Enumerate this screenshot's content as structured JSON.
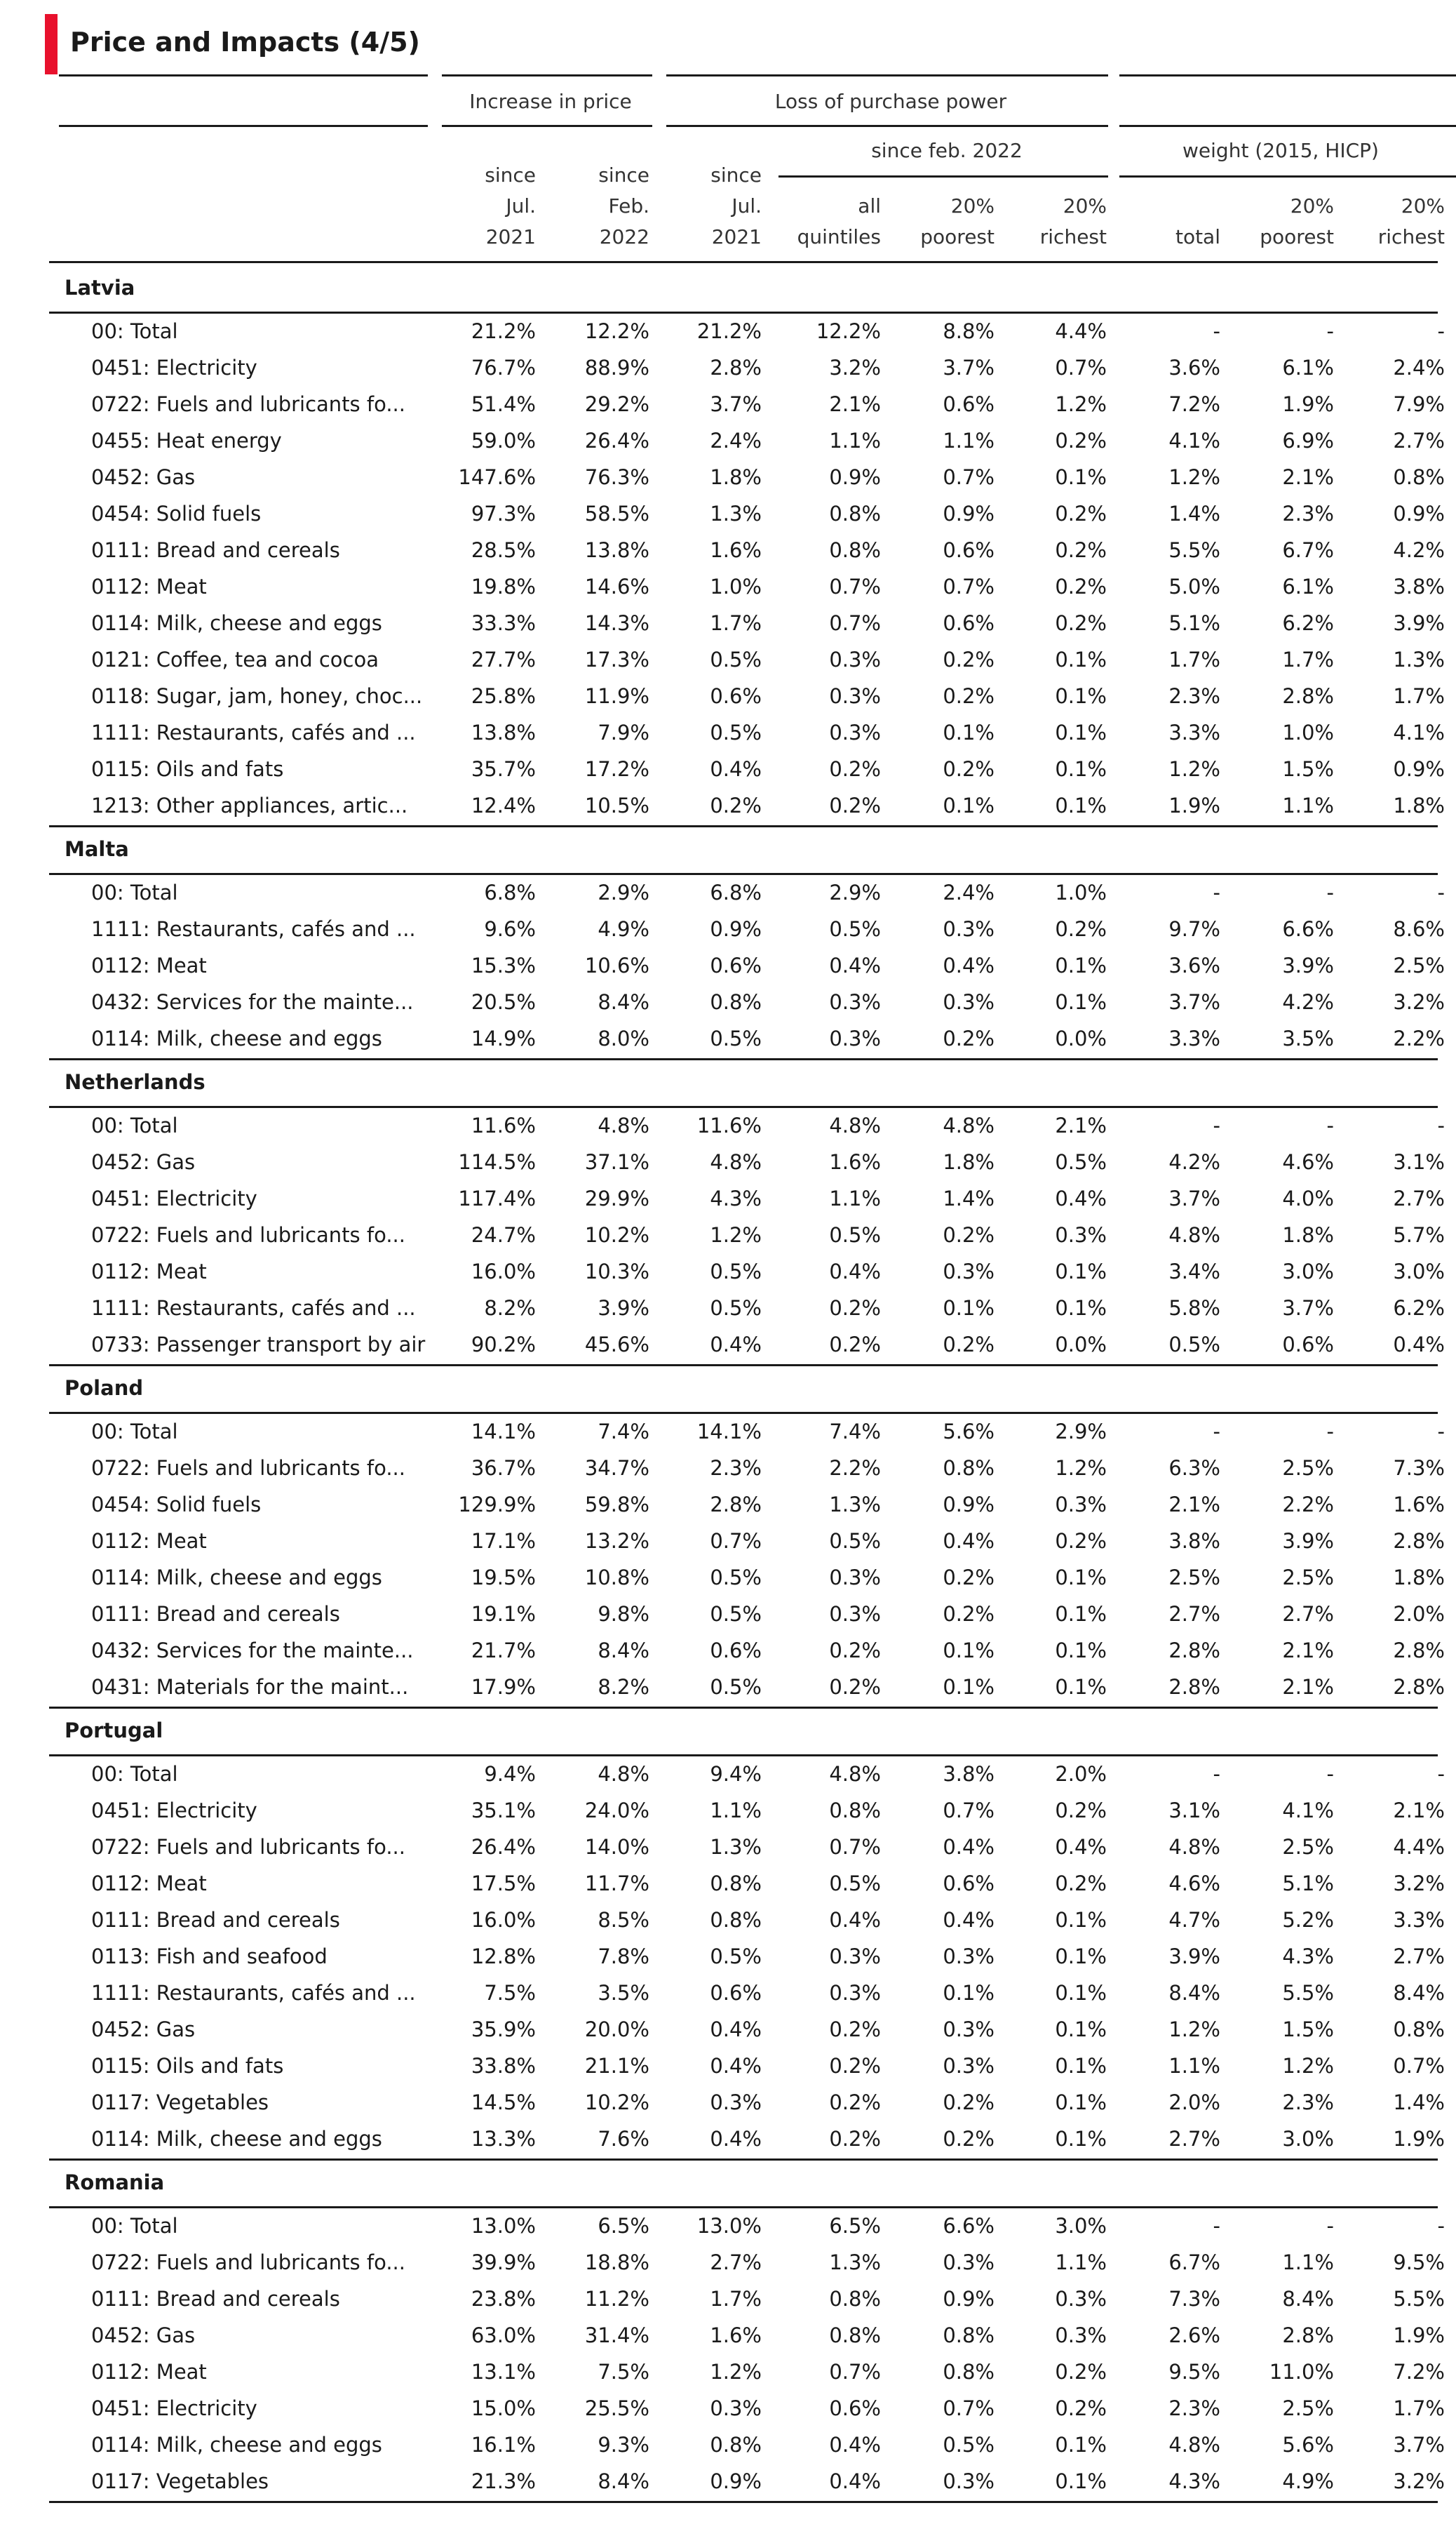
{
  "title": "Price and Impacts (4/5)",
  "accent_color": "#e8112d",
  "header": {
    "groups": [
      "Increase in price",
      "Loss of purchase power",
      ""
    ],
    "subgroups": [
      "since feb. 2022",
      "weight (2015, HICP)"
    ],
    "columns": [
      "since\nJul.\n2021",
      "since\nFeb.\n2022",
      "since\nJul.\n2021",
      "all\nquintiles",
      "20%\npoorest",
      "20%\nrichest",
      "total",
      "20%\npoorest",
      "20%\nrichest"
    ]
  },
  "sections": [
    {
      "country": "Latvia",
      "rows": [
        [
          "00: Total",
          "21.2%",
          "12.2%",
          "21.2%",
          "12.2%",
          "8.8%",
          "4.4%",
          "-",
          "-",
          "-"
        ],
        [
          "0451: Electricity",
          "76.7%",
          "88.9%",
          "2.8%",
          "3.2%",
          "3.7%",
          "0.7%",
          "3.6%",
          "6.1%",
          "2.4%"
        ],
        [
          "0722: Fuels and lubricants fo...",
          "51.4%",
          "29.2%",
          "3.7%",
          "2.1%",
          "0.6%",
          "1.2%",
          "7.2%",
          "1.9%",
          "7.9%"
        ],
        [
          "0455: Heat energy",
          "59.0%",
          "26.4%",
          "2.4%",
          "1.1%",
          "1.1%",
          "0.2%",
          "4.1%",
          "6.9%",
          "2.7%"
        ],
        [
          "0452: Gas",
          "147.6%",
          "76.3%",
          "1.8%",
          "0.9%",
          "0.7%",
          "0.1%",
          "1.2%",
          "2.1%",
          "0.8%"
        ],
        [
          "0454: Solid fuels",
          "97.3%",
          "58.5%",
          "1.3%",
          "0.8%",
          "0.9%",
          "0.2%",
          "1.4%",
          "2.3%",
          "0.9%"
        ],
        [
          "0111: Bread and cereals",
          "28.5%",
          "13.8%",
          "1.6%",
          "0.8%",
          "0.6%",
          "0.2%",
          "5.5%",
          "6.7%",
          "4.2%"
        ],
        [
          "0112: Meat",
          "19.8%",
          "14.6%",
          "1.0%",
          "0.7%",
          "0.7%",
          "0.2%",
          "5.0%",
          "6.1%",
          "3.8%"
        ],
        [
          "0114: Milk, cheese and eggs",
          "33.3%",
          "14.3%",
          "1.7%",
          "0.7%",
          "0.6%",
          "0.2%",
          "5.1%",
          "6.2%",
          "3.9%"
        ],
        [
          "0121: Coffee, tea and cocoa",
          "27.7%",
          "17.3%",
          "0.5%",
          "0.3%",
          "0.2%",
          "0.1%",
          "1.7%",
          "1.7%",
          "1.3%"
        ],
        [
          "0118: Sugar, jam, honey, choc...",
          "25.8%",
          "11.9%",
          "0.6%",
          "0.3%",
          "0.2%",
          "0.1%",
          "2.3%",
          "2.8%",
          "1.7%"
        ],
        [
          "1111: Restaurants, cafés and ...",
          "13.8%",
          "7.9%",
          "0.5%",
          "0.3%",
          "0.1%",
          "0.1%",
          "3.3%",
          "1.0%",
          "4.1%"
        ],
        [
          "0115: Oils and fats",
          "35.7%",
          "17.2%",
          "0.4%",
          "0.2%",
          "0.2%",
          "0.1%",
          "1.2%",
          "1.5%",
          "0.9%"
        ],
        [
          "1213: Other appliances, artic...",
          "12.4%",
          "10.5%",
          "0.2%",
          "0.2%",
          "0.1%",
          "0.1%",
          "1.9%",
          "1.1%",
          "1.8%"
        ]
      ]
    },
    {
      "country": "Malta",
      "rows": [
        [
          "00: Total",
          "6.8%",
          "2.9%",
          "6.8%",
          "2.9%",
          "2.4%",
          "1.0%",
          "-",
          "-",
          "-"
        ],
        [
          "1111: Restaurants, cafés and ...",
          "9.6%",
          "4.9%",
          "0.9%",
          "0.5%",
          "0.3%",
          "0.2%",
          "9.7%",
          "6.6%",
          "8.6%"
        ],
        [
          "0112: Meat",
          "15.3%",
          "10.6%",
          "0.6%",
          "0.4%",
          "0.4%",
          "0.1%",
          "3.6%",
          "3.9%",
          "2.5%"
        ],
        [
          "0432: Services for the mainte...",
          "20.5%",
          "8.4%",
          "0.8%",
          "0.3%",
          "0.3%",
          "0.1%",
          "3.7%",
          "4.2%",
          "3.2%"
        ],
        [
          "0114: Milk, cheese and eggs",
          "14.9%",
          "8.0%",
          "0.5%",
          "0.3%",
          "0.2%",
          "0.0%",
          "3.3%",
          "3.5%",
          "2.2%"
        ]
      ]
    },
    {
      "country": "Netherlands",
      "rows": [
        [
          "00: Total",
          "11.6%",
          "4.8%",
          "11.6%",
          "4.8%",
          "4.8%",
          "2.1%",
          "-",
          "-",
          "-"
        ],
        [
          "0452: Gas",
          "114.5%",
          "37.1%",
          "4.8%",
          "1.6%",
          "1.8%",
          "0.5%",
          "4.2%",
          "4.6%",
          "3.1%"
        ],
        [
          "0451: Electricity",
          "117.4%",
          "29.9%",
          "4.3%",
          "1.1%",
          "1.4%",
          "0.4%",
          "3.7%",
          "4.0%",
          "2.7%"
        ],
        [
          "0722: Fuels and lubricants fo...",
          "24.7%",
          "10.2%",
          "1.2%",
          "0.5%",
          "0.2%",
          "0.3%",
          "4.8%",
          "1.8%",
          "5.7%"
        ],
        [
          "0112: Meat",
          "16.0%",
          "10.3%",
          "0.5%",
          "0.4%",
          "0.3%",
          "0.1%",
          "3.4%",
          "3.0%",
          "3.0%"
        ],
        [
          "1111: Restaurants, cafés and ...",
          "8.2%",
          "3.9%",
          "0.5%",
          "0.2%",
          "0.1%",
          "0.1%",
          "5.8%",
          "3.7%",
          "6.2%"
        ],
        [
          "0733: Passenger transport by air",
          "90.2%",
          "45.6%",
          "0.4%",
          "0.2%",
          "0.2%",
          "0.0%",
          "0.5%",
          "0.6%",
          "0.4%"
        ]
      ]
    },
    {
      "country": "Poland",
      "rows": [
        [
          "00: Total",
          "14.1%",
          "7.4%",
          "14.1%",
          "7.4%",
          "5.6%",
          "2.9%",
          "-",
          "-",
          "-"
        ],
        [
          "0722: Fuels and lubricants fo...",
          "36.7%",
          "34.7%",
          "2.3%",
          "2.2%",
          "0.8%",
          "1.2%",
          "6.3%",
          "2.5%",
          "7.3%"
        ],
        [
          "0454: Solid fuels",
          "129.9%",
          "59.8%",
          "2.8%",
          "1.3%",
          "0.9%",
          "0.3%",
          "2.1%",
          "2.2%",
          "1.6%"
        ],
        [
          "0112: Meat",
          "17.1%",
          "13.2%",
          "0.7%",
          "0.5%",
          "0.4%",
          "0.2%",
          "3.8%",
          "3.9%",
          "2.8%"
        ],
        [
          "0114: Milk, cheese and eggs",
          "19.5%",
          "10.8%",
          "0.5%",
          "0.3%",
          "0.2%",
          "0.1%",
          "2.5%",
          "2.5%",
          "1.8%"
        ],
        [
          "0111: Bread and cereals",
          "19.1%",
          "9.8%",
          "0.5%",
          "0.3%",
          "0.2%",
          "0.1%",
          "2.7%",
          "2.7%",
          "2.0%"
        ],
        [
          "0432: Services for the mainte...",
          "21.7%",
          "8.4%",
          "0.6%",
          "0.2%",
          "0.1%",
          "0.1%",
          "2.8%",
          "2.1%",
          "2.8%"
        ],
        [
          "0431: Materials for the maint...",
          "17.9%",
          "8.2%",
          "0.5%",
          "0.2%",
          "0.1%",
          "0.1%",
          "2.8%",
          "2.1%",
          "2.8%"
        ]
      ]
    },
    {
      "country": "Portugal",
      "rows": [
        [
          "00: Total",
          "9.4%",
          "4.8%",
          "9.4%",
          "4.8%",
          "3.8%",
          "2.0%",
          "-",
          "-",
          "-"
        ],
        [
          "0451: Electricity",
          "35.1%",
          "24.0%",
          "1.1%",
          "0.8%",
          "0.7%",
          "0.2%",
          "3.1%",
          "4.1%",
          "2.1%"
        ],
        [
          "0722: Fuels and lubricants fo...",
          "26.4%",
          "14.0%",
          "1.3%",
          "0.7%",
          "0.4%",
          "0.4%",
          "4.8%",
          "2.5%",
          "4.4%"
        ],
        [
          "0112: Meat",
          "17.5%",
          "11.7%",
          "0.8%",
          "0.5%",
          "0.6%",
          "0.2%",
          "4.6%",
          "5.1%",
          "3.2%"
        ],
        [
          "0111: Bread and cereals",
          "16.0%",
          "8.5%",
          "0.8%",
          "0.4%",
          "0.4%",
          "0.1%",
          "4.7%",
          "5.2%",
          "3.3%"
        ],
        [
          "0113: Fish and seafood",
          "12.8%",
          "7.8%",
          "0.5%",
          "0.3%",
          "0.3%",
          "0.1%",
          "3.9%",
          "4.3%",
          "2.7%"
        ],
        [
          "1111: Restaurants, cafés and ...",
          "7.5%",
          "3.5%",
          "0.6%",
          "0.3%",
          "0.1%",
          "0.1%",
          "8.4%",
          "5.5%",
          "8.4%"
        ],
        [
          "0452: Gas",
          "35.9%",
          "20.0%",
          "0.4%",
          "0.2%",
          "0.3%",
          "0.1%",
          "1.2%",
          "1.5%",
          "0.8%"
        ],
        [
          "0115: Oils and fats",
          "33.8%",
          "21.1%",
          "0.4%",
          "0.2%",
          "0.3%",
          "0.1%",
          "1.1%",
          "1.2%",
          "0.7%"
        ],
        [
          "0117: Vegetables",
          "14.5%",
          "10.2%",
          "0.3%",
          "0.2%",
          "0.2%",
          "0.1%",
          "2.0%",
          "2.3%",
          "1.4%"
        ],
        [
          "0114: Milk, cheese and eggs",
          "13.3%",
          "7.6%",
          "0.4%",
          "0.2%",
          "0.2%",
          "0.1%",
          "2.7%",
          "3.0%",
          "1.9%"
        ]
      ]
    },
    {
      "country": "Romania",
      "rows": [
        [
          "00: Total",
          "13.0%",
          "6.5%",
          "13.0%",
          "6.5%",
          "6.6%",
          "3.0%",
          "-",
          "-",
          "-"
        ],
        [
          "0722: Fuels and lubricants fo...",
          "39.9%",
          "18.8%",
          "2.7%",
          "1.3%",
          "0.3%",
          "1.1%",
          "6.7%",
          "1.1%",
          "9.5%"
        ],
        [
          "0111: Bread and cereals",
          "23.8%",
          "11.2%",
          "1.7%",
          "0.8%",
          "0.9%",
          "0.3%",
          "7.3%",
          "8.4%",
          "5.5%"
        ],
        [
          "0452: Gas",
          "63.0%",
          "31.4%",
          "1.6%",
          "0.8%",
          "0.8%",
          "0.3%",
          "2.6%",
          "2.8%",
          "1.9%"
        ],
        [
          "0112: Meat",
          "13.1%",
          "7.5%",
          "1.2%",
          "0.7%",
          "0.8%",
          "0.2%",
          "9.5%",
          "11.0%",
          "7.2%"
        ],
        [
          "0451: Electricity",
          "15.0%",
          "25.5%",
          "0.3%",
          "0.6%",
          "0.7%",
          "0.2%",
          "2.3%",
          "2.5%",
          "1.7%"
        ],
        [
          "0114: Milk, cheese and eggs",
          "16.1%",
          "9.3%",
          "0.8%",
          "0.4%",
          "0.5%",
          "0.1%",
          "4.8%",
          "5.6%",
          "3.7%"
        ],
        [
          "0117: Vegetables",
          "21.3%",
          "8.4%",
          "0.9%",
          "0.4%",
          "0.3%",
          "0.1%",
          "4.3%",
          "4.9%",
          "3.2%"
        ]
      ]
    }
  ]
}
